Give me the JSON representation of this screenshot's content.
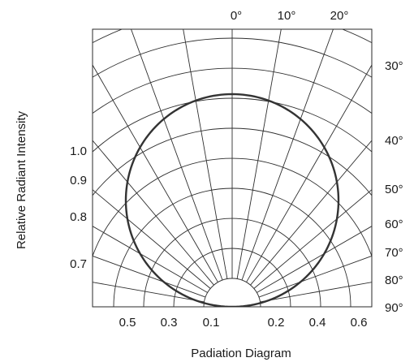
{
  "chart_data": {
    "type": "polar",
    "title": "",
    "xlabel": "Padiation Diagram",
    "ylabel": "Relative Radiant Intensity",
    "angle_labels": [
      "0°",
      "10°",
      "20°",
      "30°",
      "40°",
      "50°",
      "60°",
      "70°",
      "80°",
      "90°"
    ],
    "left_labels": [
      "1.0",
      "0.9",
      "0.8",
      "0.7"
    ],
    "bottom_labels_left": [
      "0.5",
      "0.3",
      "0.1"
    ],
    "bottom_labels_right": [
      "0.2",
      "0.4",
      "0.6"
    ],
    "grid": true,
    "radial_lines_deg": [
      10,
      20,
      30,
      40,
      50,
      60,
      70,
      80
    ],
    "ring_values": [
      0.1,
      0.2,
      0.3,
      0.4,
      0.5,
      0.6,
      0.7,
      0.8,
      0.9,
      1.0
    ],
    "series": [
      {
        "angle_deg": [
          0,
          10,
          20,
          30,
          40,
          50,
          60,
          70,
          80,
          90
        ],
        "relative_intensity": [
          1.0,
          0.985,
          0.94,
          0.866,
          0.766,
          0.643,
          0.5,
          0.342,
          0.174,
          0.0
        ],
        "color": "#333333"
      }
    ]
  }
}
